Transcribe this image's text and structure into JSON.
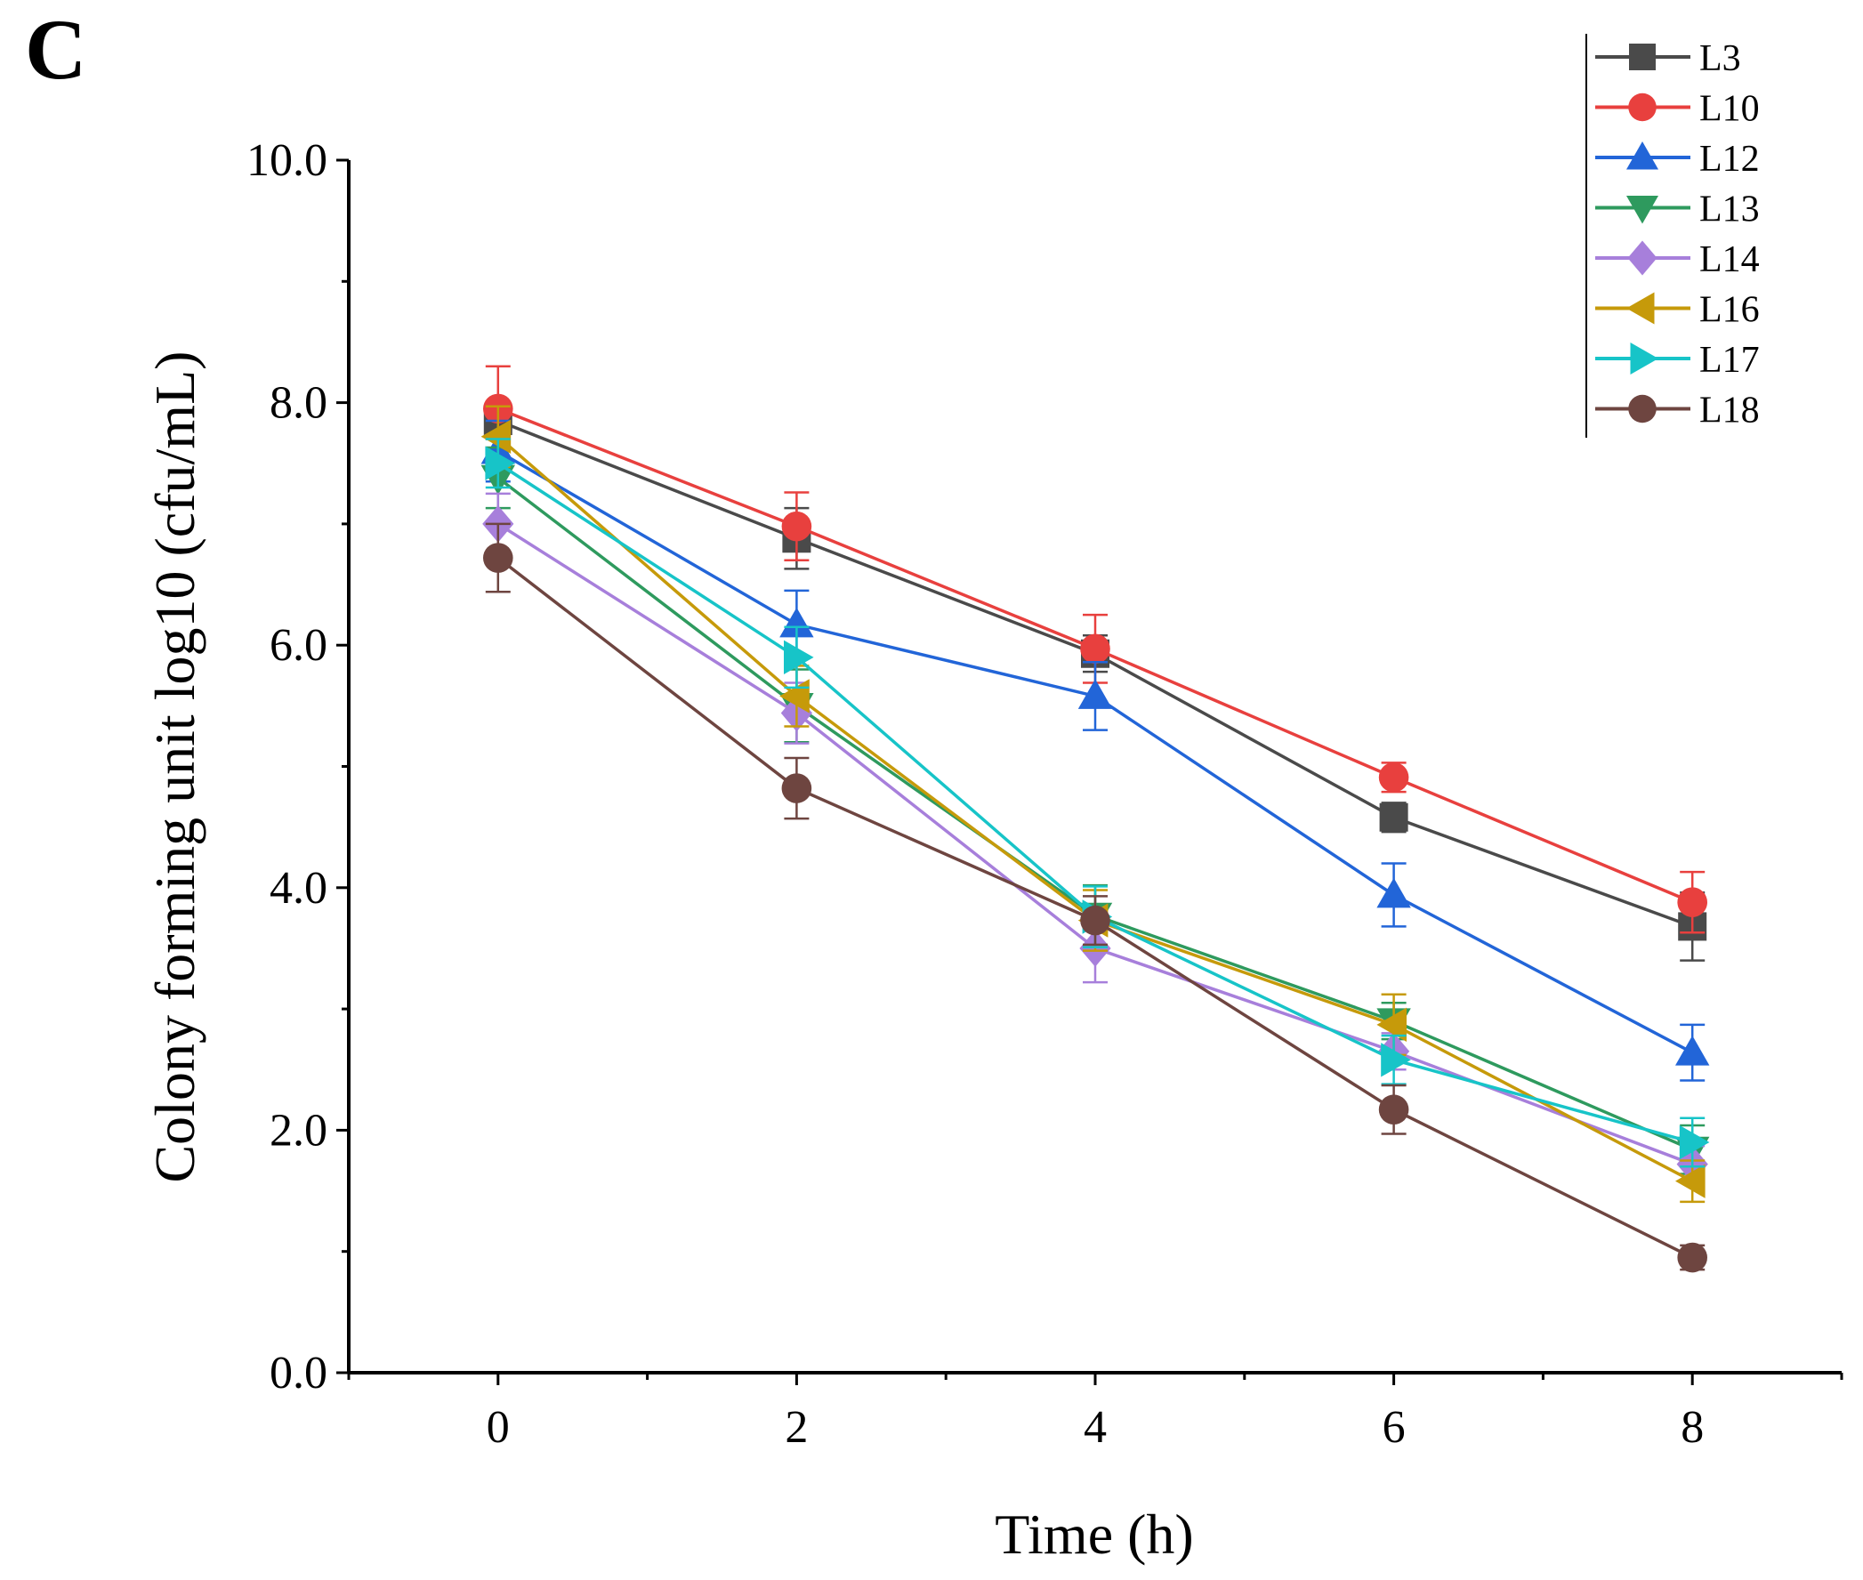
{
  "panel_label": "C",
  "chart_data": {
    "type": "line",
    "title": "",
    "xlabel": "Time (h)",
    "ylabel": "Colony forming unit log10 (cfu/mL)",
    "x": [
      0,
      2,
      4,
      6,
      8
    ],
    "xlim": [
      -1,
      9
    ],
    "ylim": [
      0,
      10
    ],
    "x_ticks": [
      "0",
      "2",
      "4",
      "6",
      "8"
    ],
    "y_ticks": [
      "0.0",
      "2.0",
      "4.0",
      "6.0",
      "8.0",
      "10.0"
    ],
    "legend_position": "top-right",
    "error_bars": true,
    "series": [
      {
        "name": "L3",
        "color": "#4a4a4a",
        "marker": "square",
        "values": [
          7.85,
          6.88,
          5.93,
          4.58,
          3.68
        ],
        "errors": [
          0.15,
          0.25,
          0.15,
          0.12,
          0.28
        ]
      },
      {
        "name": "L10",
        "color": "#e8403e",
        "marker": "circle",
        "values": [
          7.95,
          6.98,
          5.97,
          4.91,
          3.88
        ],
        "errors": [
          0.35,
          0.28,
          0.28,
          0.12,
          0.25
        ]
      },
      {
        "name": "L12",
        "color": "#2265d8",
        "marker": "triangle-up",
        "values": [
          7.6,
          6.17,
          5.58,
          3.94,
          2.64
        ],
        "errors": [
          0.25,
          0.28,
          0.28,
          0.26,
          0.23
        ]
      },
      {
        "name": "L13",
        "color": "#2e9a5e",
        "marker": "triangle-down",
        "values": [
          7.38,
          5.5,
          3.77,
          2.9,
          1.84
        ],
        "errors": [
          0.25,
          0.3,
          0.25,
          0.15,
          0.2
        ]
      },
      {
        "name": "L14",
        "color": "#a77fdb",
        "marker": "diamond",
        "values": [
          7.0,
          5.44,
          3.5,
          2.65,
          1.72
        ],
        "errors": [
          0.25,
          0.25,
          0.28,
          0.15,
          0.15
        ]
      },
      {
        "name": "L16",
        "color": "#c69a0a",
        "marker": "triangle-left",
        "values": [
          7.72,
          5.58,
          3.73,
          2.87,
          1.58
        ],
        "errors": [
          0.25,
          0.25,
          0.25,
          0.25,
          0.17
        ]
      },
      {
        "name": "L17",
        "color": "#17c4c8",
        "marker": "triangle-right",
        "values": [
          7.5,
          5.9,
          3.76,
          2.58,
          1.9
        ],
        "errors": [
          0.2,
          0.25,
          0.25,
          0.2,
          0.2
        ]
      },
      {
        "name": "L18",
        "color": "#6e4540",
        "marker": "circle",
        "values": [
          6.72,
          4.82,
          3.73,
          2.17,
          0.95
        ],
        "errors": [
          0.28,
          0.25,
          0.2,
          0.2,
          0.1
        ]
      }
    ]
  }
}
